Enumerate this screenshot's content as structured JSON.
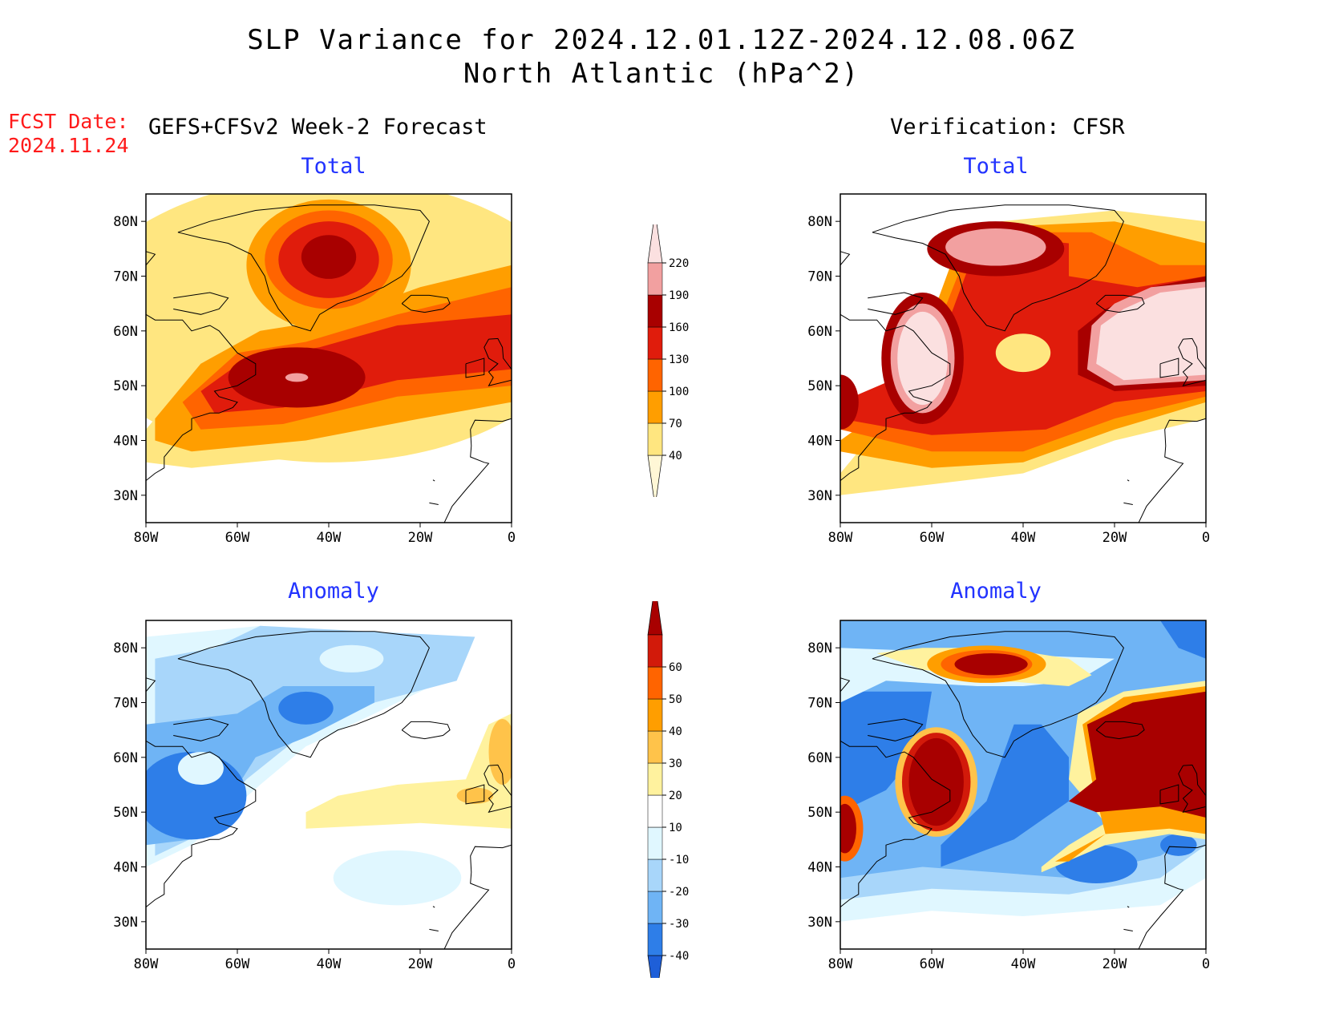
{
  "title": {
    "line1": "SLP Variance for 2024.12.01.12Z-2024.12.08.06Z",
    "line2": "North Atlantic (hPa^2)"
  },
  "fcst": {
    "label": "FCST Date:",
    "date": "2024.11.24"
  },
  "left_header": "GEFS+CFSv2 Week-2 Forecast",
  "right_header": "Verification: CFSR",
  "panel_titles": {
    "forecast_total": "Total",
    "verification_total": "Total",
    "forecast_anomaly": "Anomaly",
    "verification_anomaly": "Anomaly"
  },
  "axes": {
    "lat_ticks": [
      "80N",
      "70N",
      "60N",
      "50N",
      "40N",
      "30N"
    ],
    "lon_ticks": [
      "80W",
      "60W",
      "40W",
      "20W",
      "0"
    ]
  },
  "colorbars": {
    "total": {
      "levels": [
        "40",
        "70",
        "100",
        "130",
        "160",
        "190",
        "220"
      ],
      "colors": [
        "#fff7d6",
        "#ffe680",
        "#ff9e00",
        "#ff6400",
        "#e01c0c",
        "#a80000",
        "#f2a0a0",
        "#fbe0e0"
      ]
    },
    "anomaly": {
      "levels": [
        "-40",
        "-30",
        "-20",
        "-10",
        "10",
        "20",
        "30",
        "40",
        "50",
        "60"
      ],
      "colors": [
        "#1e5fd8",
        "#2e7ee8",
        "#6fb4f5",
        "#a8d6fa",
        "#e0f7ff",
        "#ffffff",
        "#fff29e",
        "#ffc34a",
        "#ff9e00",
        "#ff6400",
        "#d21a0a",
        "#a80000"
      ]
    }
  },
  "palette": {
    "t1": "#ffe680",
    "t2": "#ff9e00",
    "t3": "#ff6400",
    "t4": "#e01c0c",
    "t5": "#a80000",
    "t6": "#f2a0a0",
    "t7": "#fbe0e0",
    "a_neg4": "#1e5fd8",
    "a_neg3": "#2e7ee8",
    "a_neg2": "#6fb4f5",
    "a_neg1": "#a8d6fa",
    "a_neg0": "#e0f7ff",
    "a_pos1": "#fff29e",
    "a_pos2": "#ffc34a",
    "a_pos3": "#ff9e00",
    "a_pos4": "#ff6400",
    "a_pos5": "#d21a0a",
    "a_pos6": "#a80000"
  }
}
